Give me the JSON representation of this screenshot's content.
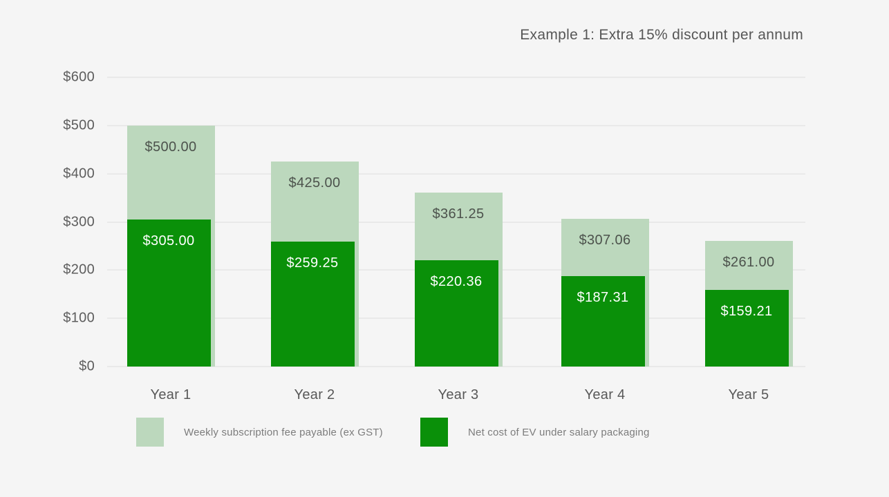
{
  "title": "Example 1: Extra 15% discount per annum",
  "colors": {
    "background": "#f5f5f5",
    "gridline": "#e9e9e9",
    "subscription_fee": "#bcd8bd",
    "net_cost": "#0a9009",
    "title_text": "#565656",
    "axis_text": "#5d5d5d",
    "label_on_light": "#4c524c",
    "label_on_dark": "#ffffff",
    "legend_text": "#7c7c7c"
  },
  "chart_data": {
    "type": "bar",
    "subtype": "overlay",
    "title": "Example 1: Extra 15% discount per annum",
    "categories": [
      "Year 1",
      "Year 2",
      "Year 3",
      "Year 4",
      "Year 5"
    ],
    "series": [
      {
        "name": "Weekly subscription fee payable (ex GST)",
        "color": "#bcd8bd",
        "values": [
          500.0,
          425.0,
          361.25,
          307.06,
          261.0
        ],
        "labels": [
          "$500.00",
          "$425.00",
          "$361.25",
          "$307.06",
          "$261.00"
        ]
      },
      {
        "name": "Net cost of EV under salary packaging",
        "color": "#0a9009",
        "values": [
          305.0,
          259.25,
          220.36,
          187.31,
          159.21
        ],
        "labels": [
          "$305.00",
          "$259.25",
          "$220.36",
          "$187.31",
          "$159.21"
        ]
      }
    ],
    "y_ticks": [
      "$600",
      "$500",
      "$400",
      "$300",
      "$200",
      "$100",
      "$0"
    ],
    "y_tick_values": [
      600,
      500,
      400,
      300,
      200,
      100,
      0
    ],
    "ylim": [
      0,
      600
    ],
    "grid": true,
    "legend_position": "bottom"
  }
}
